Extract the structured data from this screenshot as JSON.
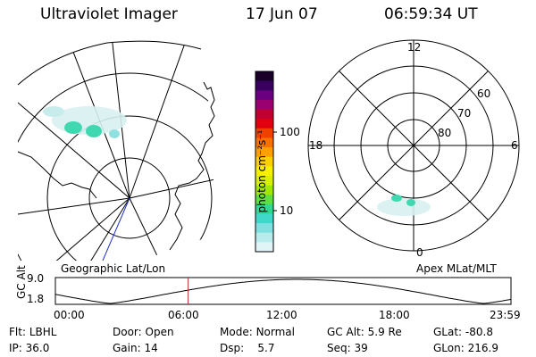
{
  "header": {
    "instrument": "Ultraviolet Imager",
    "date": "17 Jun 07",
    "time": "06:59:34 UT"
  },
  "left_panel": {
    "label": "Geographic Lat/Lon"
  },
  "right_panel": {
    "label": "Apex MLat/MLT",
    "mlt_labels": {
      "top": "12",
      "left": "18",
      "right": "6",
      "bottom": "0"
    },
    "mlat_labels": [
      "60",
      "70",
      "80"
    ]
  },
  "colorbar": {
    "unit_label": "photon cm⁻²s⁻¹",
    "ticks": [
      "100",
      "10"
    ],
    "colors_top_to_bottom": [
      "#1a0028",
      "#3a0060",
      "#6a0080",
      "#9a0070",
      "#c00030",
      "#e00010",
      "#f04000",
      "#f87000",
      "#ffa000",
      "#ffd000",
      "#f8f000",
      "#d8f000",
      "#a0e800",
      "#60e040",
      "#30d890",
      "#40d8c8",
      "#80e0e0",
      "#b8ecec",
      "#e0f6f6"
    ]
  },
  "timeline": {
    "axis_label": "GC Alt",
    "y_ticks": [
      "9.0",
      "1.8"
    ],
    "x_ticks": [
      "00:00",
      "06:00",
      "12:00",
      "18:00",
      "23:59"
    ],
    "current_time_fraction": 0.2914
  },
  "info": {
    "filter_label": "Flt:",
    "filter_value": "LBHL",
    "ip_label": "IP:",
    "ip_value": "36.0",
    "door_label": "Door:",
    "door_value": "Open",
    "gain_label": "Gain:",
    "gain_value": "14",
    "mode_label": "Mode:",
    "mode_value": "Normal",
    "dsp_label": "Dsp:",
    "dsp_value": "5.7",
    "gcalt_label": "GC Alt:",
    "gcalt_value": "5.9 Re",
    "seq_label": "Seq:",
    "seq_value": "39",
    "glat_label": "GLat:",
    "glat_value": "-80.8",
    "glon_label": "GLon:",
    "glon_value": "216.9"
  }
}
